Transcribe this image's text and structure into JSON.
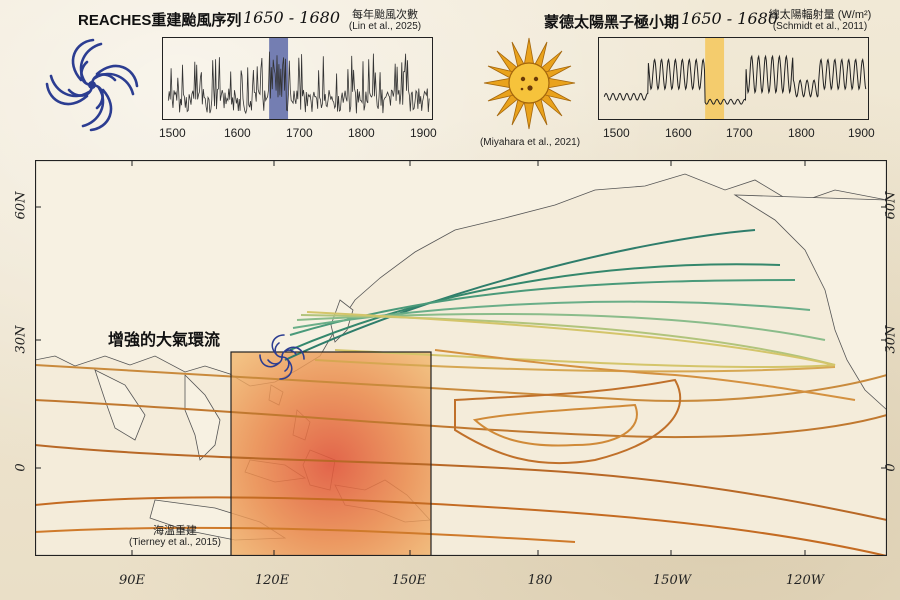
{
  "left_panel": {
    "title": "REACHES重建颱風序列",
    "period": "1650 - 1680",
    "subtitle": "每年颱風次數",
    "citation": "(Lin et al., 2025)",
    "ticks": [
      "1500",
      "1600",
      "1700",
      "1800",
      "1900"
    ],
    "highlight_color": "#5d6aa8"
  },
  "right_panel": {
    "title": "蒙德太陽黑子極小期",
    "period": "1650 - 1680",
    "subtitle": "總太陽輻射量 (W/m²)",
    "citation": "(Schmidt et al., 2011)",
    "ticks": [
      "1500",
      "1600",
      "1700",
      "1800",
      "1900"
    ],
    "highlight_color": "#f5c75a"
  },
  "sun": {
    "citation": "(Miyahara et al., 2021)"
  },
  "map": {
    "annotation_circulation": "增強的大氣環流",
    "sst_label": "海溫重建",
    "sst_citation": "(Tierney et al., 2015)",
    "lat_labels": [
      "60N",
      "30N",
      "0"
    ],
    "lon_labels": [
      "90E",
      "120E",
      "150E",
      "180",
      "150W",
      "120W"
    ]
  },
  "chart_data": [
    {
      "type": "line",
      "title": "每年颱風次數",
      "x_range": [
        1480,
        1910
      ],
      "highlight_range": [
        1650,
        1680
      ],
      "note": "annual typhoon counts, noisy series"
    },
    {
      "type": "line",
      "title": "總太陽輻射量 (W/m²)",
      "x_range": [
        1480,
        1910
      ],
      "highlight_range": [
        1650,
        1680
      ],
      "note": "total solar irradiance, low during 1650-1680"
    }
  ]
}
